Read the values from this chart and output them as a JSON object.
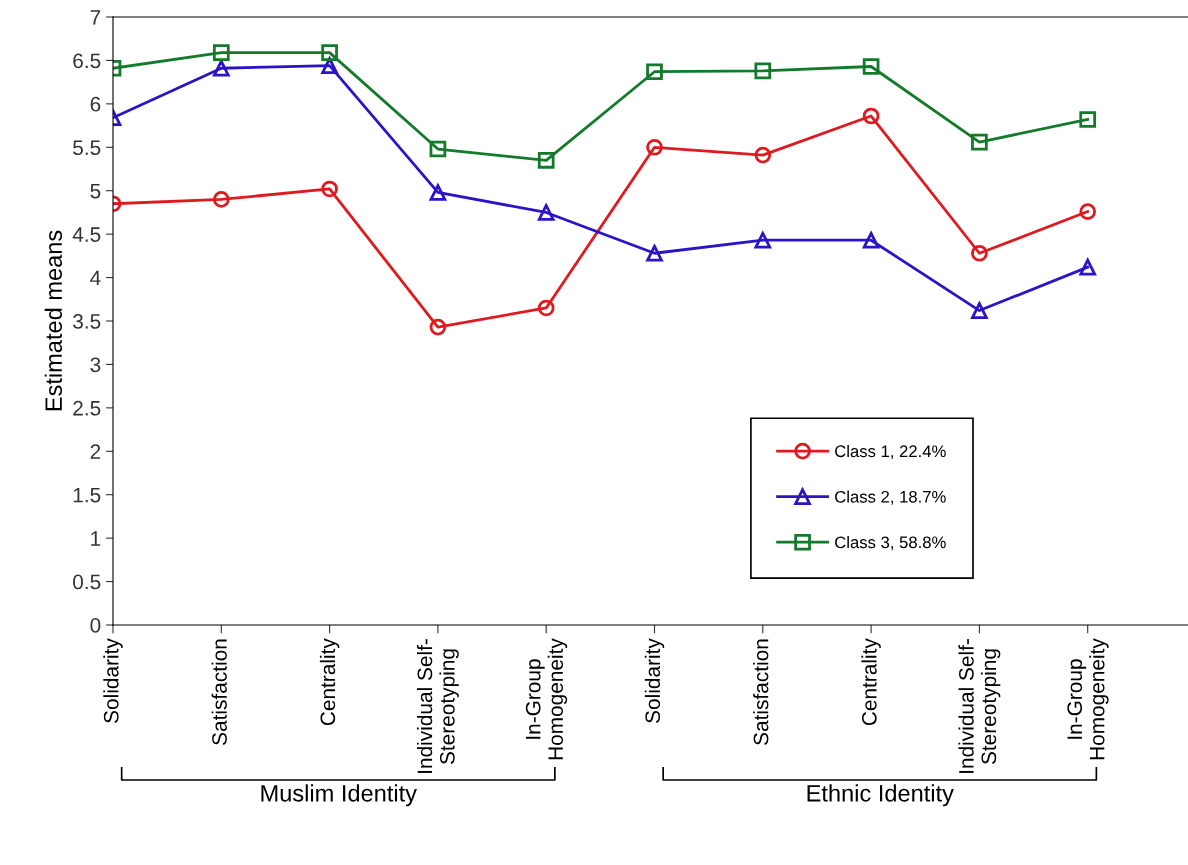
{
  "chart_data": {
    "type": "line",
    "ylabel": "Estimated means",
    "categories": [
      "Solidarity",
      "Satisfaction",
      "Centrality",
      "Individual Self-\nStereotyping",
      "In-Group\nHomogeneity",
      "Solidarity",
      "Satisfaction",
      "Centrality",
      "Individual Self-\nStereotyping",
      "In-Group\nHomogeneity"
    ],
    "series": [
      {
        "name": "Class 1, 22.4%",
        "color": "#e0191f",
        "marker": "circle",
        "values": [
          4.85,
          4.9,
          5.02,
          3.43,
          3.65,
          5.5,
          5.41,
          5.86,
          4.28,
          4.76
        ]
      },
      {
        "name": "Class 2, 18.7%",
        "color": "#2a14c8",
        "marker": "triangle",
        "values": [
          5.84,
          6.41,
          6.44,
          4.98,
          4.75,
          4.28,
          4.43,
          4.43,
          3.62,
          4.12
        ]
      },
      {
        "name": "Class 3, 58.8%",
        "color": "#137a2a",
        "marker": "square",
        "values": [
          6.41,
          6.59,
          6.59,
          5.48,
          5.35,
          6.37,
          6.38,
          6.43,
          5.56,
          5.82
        ]
      }
    ],
    "ylim": [
      0,
      7
    ],
    "yticks": [
      0,
      0.5,
      1,
      1.5,
      2,
      2.5,
      3,
      3.5,
      4,
      4.5,
      5,
      5.5,
      6,
      6.5,
      7
    ],
    "annotations": [
      "Muslim Identity",
      "Ethnic Identity"
    ],
    "legend": "bottom right",
    "grid": false,
    "line_style": "solid"
  }
}
